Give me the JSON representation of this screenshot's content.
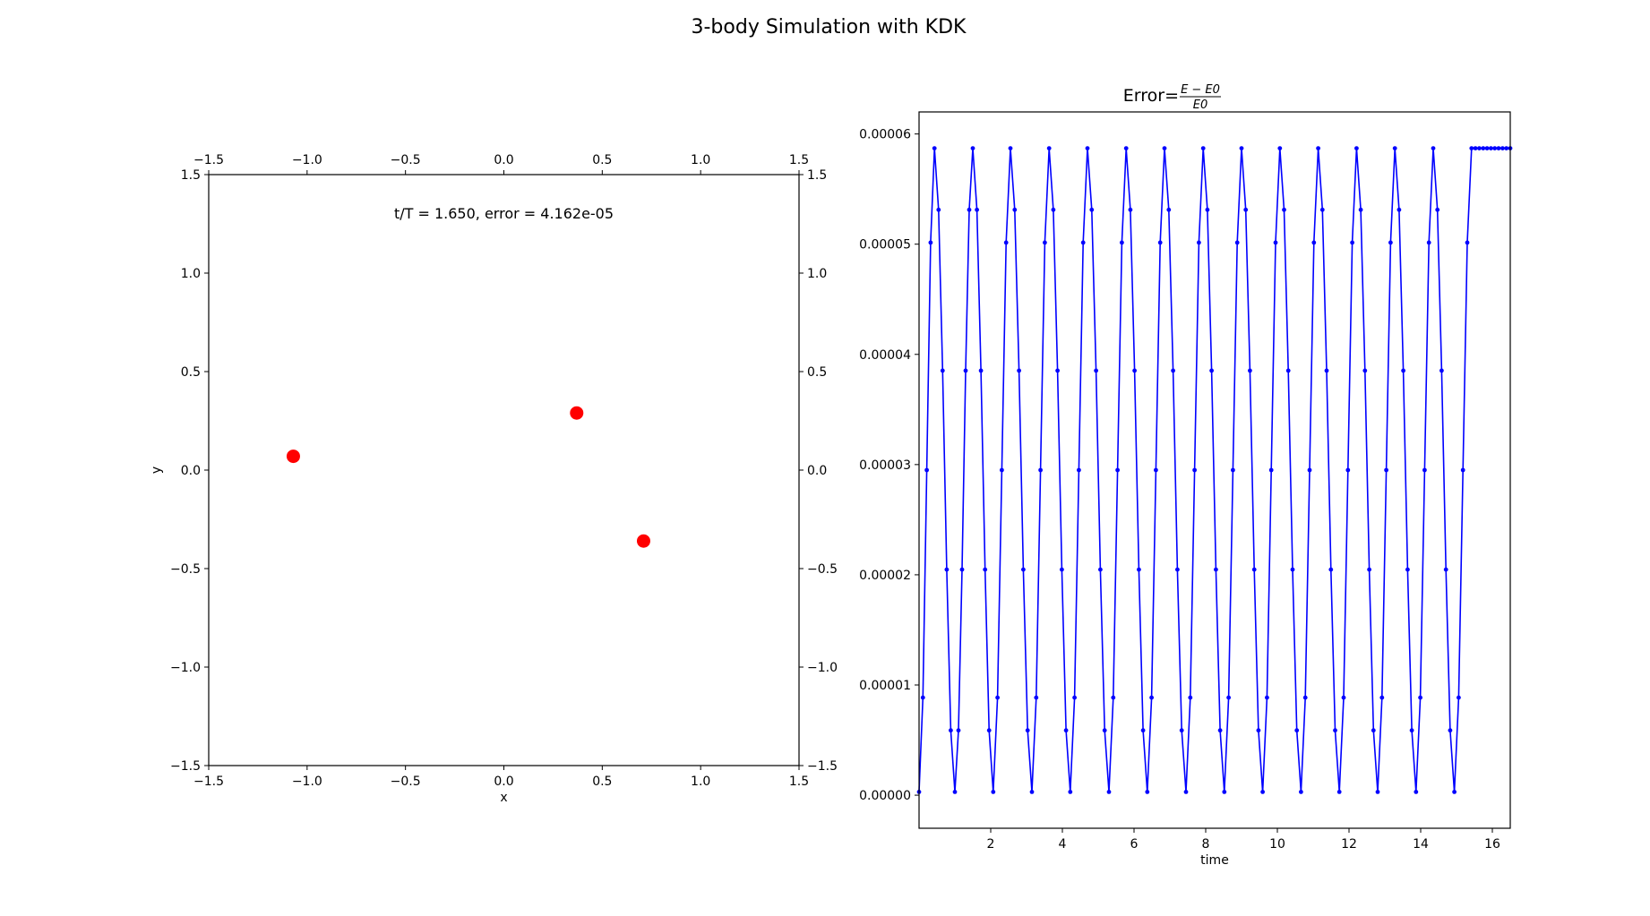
{
  "figure": {
    "suptitle": "3-body Simulation with KDK"
  },
  "chart_data": [
    {
      "type": "scatter",
      "panel": "bodies",
      "annotation": "t/T =  1.650, error =  4.162e-05",
      "xlabel": "x",
      "ylabel": "y",
      "xlim": [
        -1.5,
        1.5
      ],
      "ylim": [
        -1.5,
        1.5
      ],
      "ticks": [
        -1.5,
        -1.0,
        -0.5,
        0.0,
        0.5,
        1.0,
        1.5
      ],
      "tick_labels": [
        "−1.5",
        "−1.0",
        "−0.5",
        "0.0",
        "0.5",
        "1.0",
        "1.5"
      ],
      "grid": false,
      "color": "#ff0000",
      "points": [
        {
          "x": -1.07,
          "y": 0.07
        },
        {
          "x": 0.37,
          "y": 0.29
        },
        {
          "x": 0.71,
          "y": -0.36
        }
      ]
    },
    {
      "type": "line",
      "panel": "error",
      "title_prefix": "Error=",
      "title_numerator": "E − E0",
      "title_denominator": "E0",
      "xlabel": "time",
      "ylabel": "",
      "xlim": [
        0.0,
        16.5
      ],
      "ylim": [
        -3e-06,
        6.2e-05
      ],
      "x_ticks": [
        2,
        4,
        6,
        8,
        10,
        12,
        14,
        16
      ],
      "x_tick_labels": [
        "2",
        "4",
        "6",
        "8",
        "10",
        "12",
        "14",
        "16"
      ],
      "y_ticks": [
        0,
        1e-05,
        2e-05,
        3e-05,
        4e-05,
        5e-05,
        6e-05
      ],
      "y_tick_labels": [
        "0.00000",
        "0.00001",
        "0.00002",
        "0.00003",
        "0.00004",
        "0.00005",
        "0.00006"
      ],
      "grid": false,
      "color": "#0000ff",
      "series": [
        {
          "peaks": [
            0.43,
            1.5,
            2.55,
            3.63,
            4.7,
            5.78,
            6.85,
            7.93,
            9.0,
            10.07,
            11.14,
            12.21,
            13.28,
            14.35,
            15.42,
            16.5
          ],
          "troughs": [
            0.0,
            1.0,
            2.07,
            3.15,
            4.22,
            5.3,
            6.37,
            7.45,
            8.52,
            9.59,
            10.66,
            11.73,
            12.8,
            13.87,
            14.94
          ],
          "peak_value": 5.87e-05,
          "trough_value": 3e-07,
          "sample_step": 0.11
        }
      ]
    }
  ]
}
